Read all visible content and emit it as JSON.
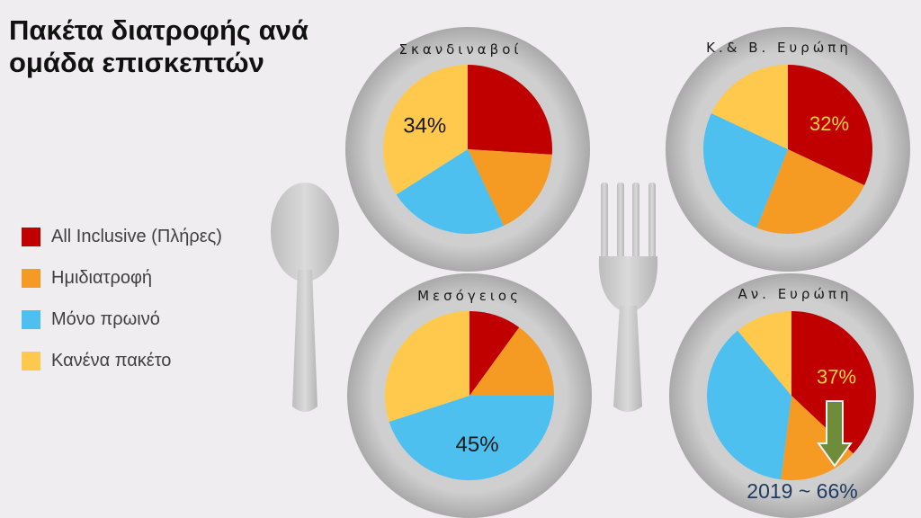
{
  "title": "Πακέτα διατροφής ανά ομάδα επισκεπτών",
  "colors": {
    "all_inclusive": "#c00000",
    "half_board": "#f59a23",
    "breakfast": "#4dc0ef",
    "none": "#ffc94d",
    "arrow": "#6e8c3a",
    "trend_text": "#1f3a5f"
  },
  "icons": [
    "spoon-icon",
    "fork-icon",
    "arrow-down-icon"
  ],
  "legend": [
    {
      "label": "All Inclusive (Πλήρες)",
      "color": "#c00000"
    },
    {
      "label": "Ημιδιατροφή",
      "color": "#f59a23"
    },
    {
      "label": "Μόνο πρωινό",
      "color": "#4dc0ef"
    },
    {
      "label": "Κανένα πακέτο",
      "color": "#ffc94d"
    }
  ],
  "chart_data": [
    {
      "type": "pie",
      "title": "Σκανδιναβοί",
      "categories": [
        "All Inclusive (Πλήρες)",
        "Ημιδιατροφή",
        "Μόνο πρωινό",
        "Κανένα πακέτο"
      ],
      "values": [
        26,
        17,
        23,
        34
      ],
      "data_label": "34%",
      "label_category": "Κανένα πακέτο"
    },
    {
      "type": "pie",
      "title": "Κ.& Β. Ευρώπη",
      "categories": [
        "All Inclusive (Πλήρες)",
        "Ημιδιατροφή",
        "Μόνο πρωινό",
        "Κανένα πακέτο"
      ],
      "values": [
        32,
        24,
        26,
        18
      ],
      "data_label": "32%",
      "label_category": "All Inclusive (Πλήρες)"
    },
    {
      "type": "pie",
      "title": "Μεσόγειος",
      "categories": [
        "All Inclusive (Πλήρες)",
        "Ημιδιατροφή",
        "Μόνο πρωινό",
        "Κανένα πακέτο"
      ],
      "values": [
        10,
        15,
        45,
        30
      ],
      "data_label": "45%",
      "label_category": "Μόνο πρωινό"
    },
    {
      "type": "pie",
      "title": "Αν. Ευρώπη",
      "categories": [
        "All Inclusive (Πλήρες)",
        "Ημιδιατροφή",
        "Μόνο πρωινό",
        "Κανένα πακέτο"
      ],
      "values": [
        37,
        15,
        37,
        11
      ],
      "data_label": "37%",
      "label_category": "All Inclusive (Πλήρες)",
      "annotation": "2019 ~ 66%"
    }
  ]
}
